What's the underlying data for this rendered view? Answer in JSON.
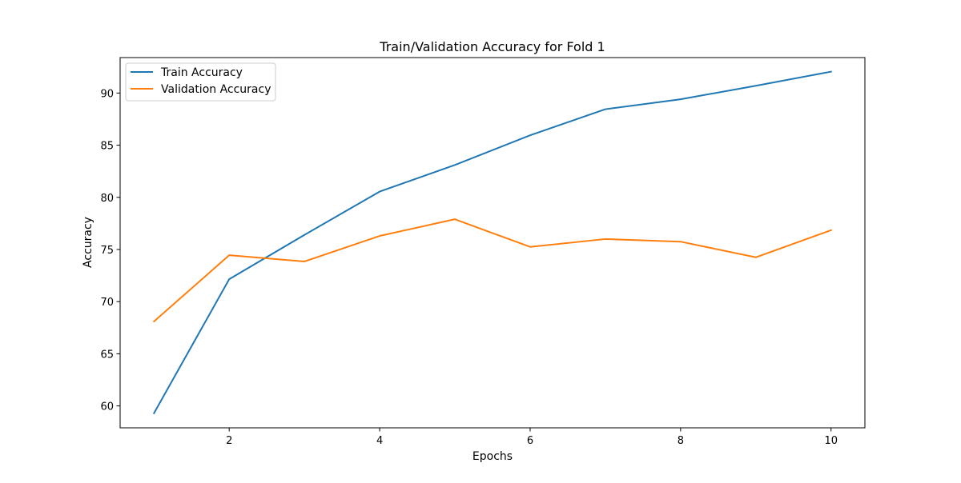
{
  "chart_data": {
    "type": "line",
    "title": "Train/Validation Accuracy for Fold 1",
    "xlabel": "Epochs",
    "ylabel": "Accuracy",
    "x": [
      1,
      2,
      3,
      4,
      5,
      6,
      7,
      8,
      9,
      10
    ],
    "xlim": [
      0.55,
      10.45
    ],
    "ylim": [
      57.9,
      93.4
    ],
    "xticks": [
      2,
      4,
      6,
      8,
      10
    ],
    "yticks": [
      60,
      65,
      70,
      75,
      80,
      85,
      90
    ],
    "grid": false,
    "legend_position": "upper left",
    "series": [
      {
        "name": "Train Accuracy",
        "color": "#1f77b4",
        "values": [
          59.3,
          72.15,
          76.4,
          80.55,
          83.1,
          85.95,
          88.45,
          89.4,
          90.7,
          92.05
        ]
      },
      {
        "name": "Validation Accuracy",
        "color": "#ff7f0e",
        "values": [
          68.1,
          74.45,
          73.85,
          76.3,
          77.9,
          75.25,
          76.0,
          75.75,
          74.25,
          76.85
        ]
      }
    ]
  }
}
